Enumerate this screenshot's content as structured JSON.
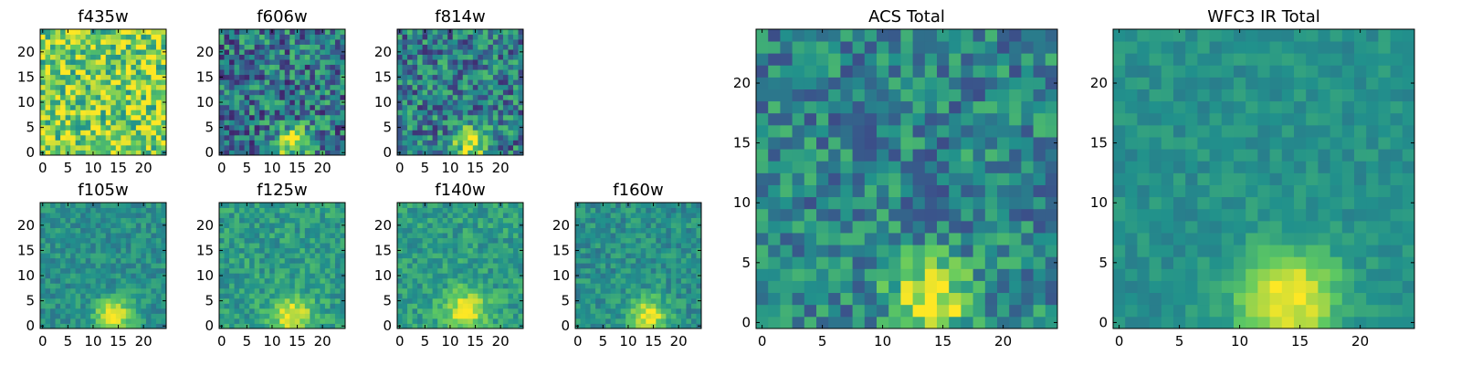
{
  "figure": {
    "colormap": "viridis",
    "colormap_stops": [
      "#440154",
      "#3b528b",
      "#21918c",
      "#5ec962",
      "#fde725"
    ]
  },
  "chart_data": [
    {
      "type": "heatmap",
      "title": "f435w",
      "xlabel": "",
      "ylabel": "",
      "xlim": [
        -0.5,
        24.5
      ],
      "ylim": [
        -0.5,
        24.5
      ],
      "xticks": [
        "0",
        "5",
        "10",
        "15",
        "20"
      ],
      "yticks": [
        "0",
        "5",
        "10",
        "15",
        "20"
      ],
      "grid_size": 25,
      "mean_level": 0.78,
      "noise": 0.3,
      "source": {
        "x": 14,
        "y": 2,
        "peak": 0.15,
        "sigma": 2.5
      }
    },
    {
      "type": "heatmap",
      "title": "f606w",
      "xlabel": "",
      "ylabel": "",
      "xlim": [
        -0.5,
        24.5
      ],
      "ylim": [
        -0.5,
        24.5
      ],
      "xticks": [
        "0",
        "5",
        "10",
        "15",
        "20"
      ],
      "yticks": [
        "0",
        "5",
        "10",
        "15",
        "20"
      ],
      "grid_size": 25,
      "mean_level": 0.4,
      "noise": 0.3,
      "source": {
        "x": 14,
        "y": 2,
        "peak": 0.6,
        "sigma": 2.2
      }
    },
    {
      "type": "heatmap",
      "title": "f814w",
      "xlabel": "",
      "ylabel": "",
      "xlim": [
        -0.5,
        24.5
      ],
      "ylim": [
        -0.5,
        24.5
      ],
      "xticks": [
        "0",
        "5",
        "10",
        "15",
        "20"
      ],
      "yticks": [
        "0",
        "5",
        "10",
        "15",
        "20"
      ],
      "grid_size": 25,
      "mean_level": 0.42,
      "noise": 0.28,
      "source": {
        "x": 14,
        "y": 2,
        "peak": 0.6,
        "sigma": 2.2
      }
    },
    {
      "type": "heatmap",
      "title": "f105w",
      "xlabel": "",
      "ylabel": "",
      "xlim": [
        -0.5,
        24.5
      ],
      "ylim": [
        -0.5,
        24.5
      ],
      "xticks": [
        "0",
        "5",
        "10",
        "15",
        "20"
      ],
      "yticks": [
        "0",
        "5",
        "10",
        "15",
        "20"
      ],
      "grid_size": 25,
      "mean_level": 0.5,
      "noise": 0.12,
      "source": {
        "x": 14,
        "y": 2,
        "peak": 0.5,
        "sigma": 2.5
      }
    },
    {
      "type": "heatmap",
      "title": "f125w",
      "xlabel": "",
      "ylabel": "",
      "xlim": [
        -0.5,
        24.5
      ],
      "ylim": [
        -0.5,
        24.5
      ],
      "xticks": [
        "0",
        "5",
        "10",
        "15",
        "20"
      ],
      "yticks": [
        "0",
        "5",
        "10",
        "15",
        "20"
      ],
      "grid_size": 25,
      "mean_level": 0.55,
      "noise": 0.14,
      "source": {
        "x": 14,
        "y": 2,
        "peak": 0.45,
        "sigma": 2.8
      }
    },
    {
      "type": "heatmap",
      "title": "f140w",
      "xlabel": "",
      "ylabel": "",
      "xlim": [
        -0.5,
        24.5
      ],
      "ylim": [
        -0.5,
        24.5
      ],
      "xticks": [
        "0",
        "5",
        "10",
        "15",
        "20"
      ],
      "yticks": [
        "0",
        "5",
        "10",
        "15",
        "20"
      ],
      "grid_size": 25,
      "mean_level": 0.55,
      "noise": 0.14,
      "source": {
        "x": 13,
        "y": 3,
        "peak": 0.45,
        "sigma": 3.0
      }
    },
    {
      "type": "heatmap",
      "title": "f160w",
      "xlabel": "",
      "ylabel": "",
      "xlim": [
        -0.5,
        24.5
      ],
      "ylim": [
        -0.5,
        24.5
      ],
      "xticks": [
        "0",
        "5",
        "10",
        "15",
        "20"
      ],
      "yticks": [
        "0",
        "5",
        "10",
        "15",
        "20"
      ],
      "grid_size": 25,
      "mean_level": 0.5,
      "noise": 0.13,
      "source": {
        "x": 14,
        "y": 2,
        "peak": 0.5,
        "sigma": 2.6
      }
    },
    {
      "type": "heatmap",
      "title": "ACS Total",
      "xlabel": "",
      "ylabel": "",
      "xlim": [
        -0.5,
        24.5
      ],
      "ylim": [
        -0.5,
        24.5
      ],
      "xticks": [
        "0",
        "5",
        "10",
        "15",
        "20"
      ],
      "yticks": [
        "0",
        "5",
        "10",
        "15",
        "20"
      ],
      "grid_size": 25,
      "mean_level": 0.45,
      "noise": 0.22,
      "source": {
        "x": 14,
        "y": 2,
        "peak": 0.55,
        "sigma": 2.3
      }
    },
    {
      "type": "heatmap",
      "title": "WFC3 IR Total",
      "xlabel": "",
      "ylabel": "",
      "xlim": [
        -0.5,
        24.5
      ],
      "ylim": [
        -0.5,
        24.5
      ],
      "xticks": [
        "0",
        "5",
        "10",
        "15",
        "20"
      ],
      "yticks": [
        "0",
        "5",
        "10",
        "15",
        "20"
      ],
      "grid_size": 25,
      "mean_level": 0.5,
      "noise": 0.08,
      "source": {
        "x": 14,
        "y": 2,
        "peak": 0.5,
        "sigma": 3.0
      }
    }
  ]
}
